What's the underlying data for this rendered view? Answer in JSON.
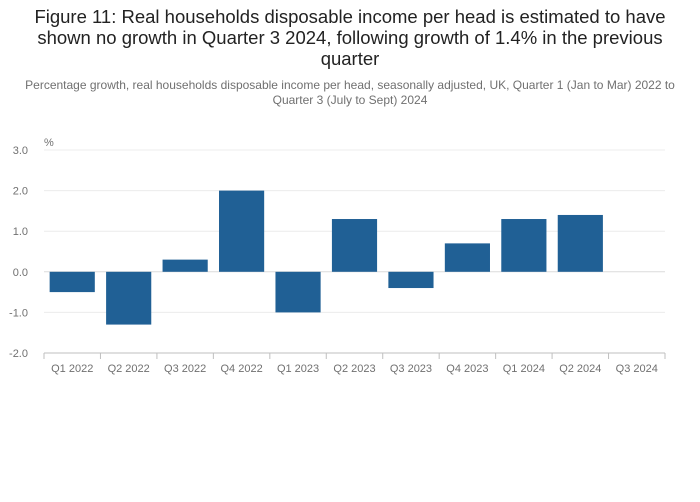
{
  "chart_data": {
    "type": "bar",
    "title": "Figure 11: Real households disposable income per head is estimated to have shown no growth in Quarter 3 2024, following growth of 1.4% in the previous quarter",
    "subtitle": "Percentage growth, real households disposable income per head, seasonally adjusted, UK, Quarter 1 (Jan to Mar) 2022 to Quarter 3 (July to Sept) 2024",
    "ylabel": "%",
    "xlabel": "",
    "categories": [
      "Q1 2022",
      "Q2 2022",
      "Q3 2022",
      "Q4 2022",
      "Q1 2023",
      "Q2 2023",
      "Q3 2023",
      "Q4 2023",
      "Q1 2024",
      "Q2 2024",
      "Q3 2024"
    ],
    "values": [
      -0.5,
      -1.3,
      0.3,
      2.0,
      -1.0,
      1.3,
      -0.4,
      0.7,
      1.3,
      1.4,
      0.0
    ],
    "ylim": [
      -2.0,
      3.0
    ],
    "yticks": [
      "3.0",
      "2.0",
      "1.0",
      "0.0",
      "-1.0",
      "-2.0"
    ],
    "grid": true,
    "bar_color": "#206095"
  }
}
